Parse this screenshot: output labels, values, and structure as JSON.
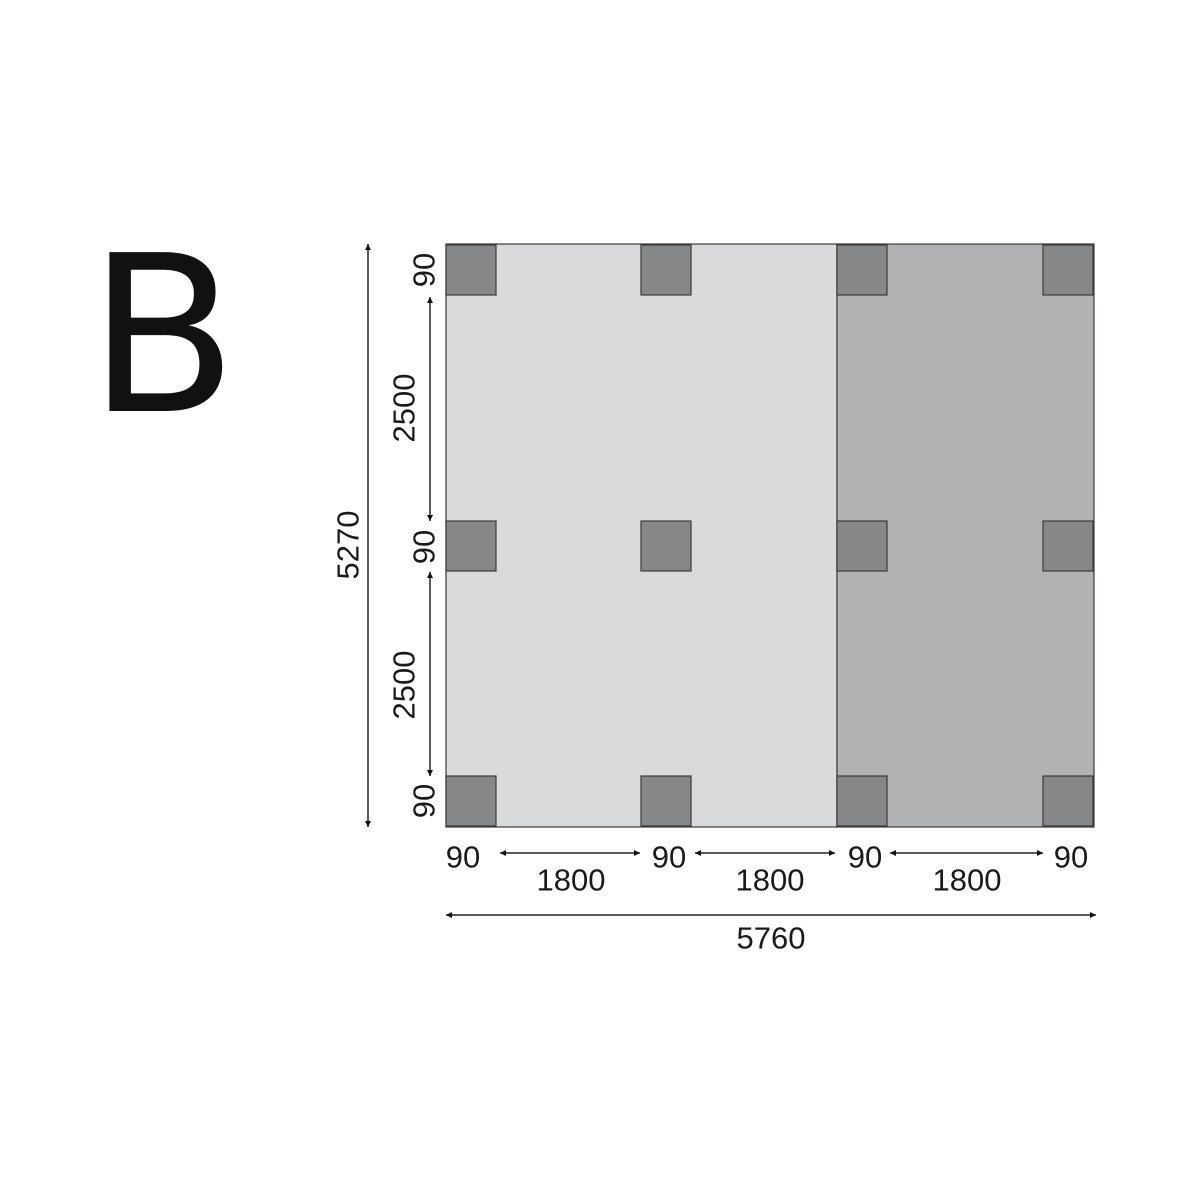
{
  "label": "B",
  "colors": {
    "left_bay": "#d9dadb",
    "right_bay": "#b1b2b3",
    "post": "#868788",
    "outline": "#3a3a3a",
    "text": "#1a1a1a"
  },
  "dimensions": {
    "total_height": "5270",
    "total_width": "5760",
    "vertical": [
      "90",
      "2500",
      "90",
      "2500",
      "90"
    ],
    "horizontal": [
      "90",
      "1800",
      "90",
      "1800",
      "90",
      "1800",
      "90"
    ]
  }
}
